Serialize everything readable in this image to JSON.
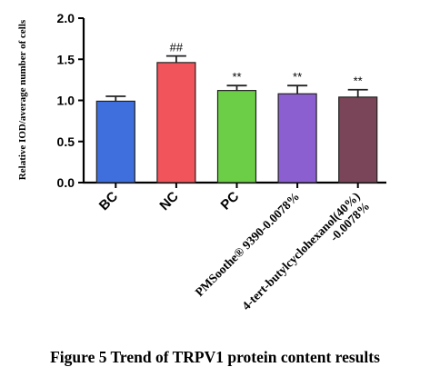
{
  "caption": "Figure 5 Trend of TRPV1 protein content results",
  "chart_data": {
    "type": "bar",
    "ylabel": "Relative IOD/average number of cells",
    "ylim": [
      0,
      2.0
    ],
    "yticks": [
      "0.0",
      "0.5",
      "1.0",
      "1.5",
      "2.0"
    ],
    "categories": [
      {
        "lines": [
          "BC"
        ]
      },
      {
        "lines": [
          "NC"
        ]
      },
      {
        "lines": [
          "PC"
        ]
      },
      {
        "lines": [
          "PMSoothe® 9390-0.0078%"
        ]
      },
      {
        "lines": [
          "4-tert-butylcyclohexanol(40%)",
          "-0.0078%"
        ]
      }
    ],
    "values": [
      0.99,
      1.46,
      1.12,
      1.08,
      1.04
    ],
    "errors": [
      0.06,
      0.08,
      0.06,
      0.1,
      0.09
    ],
    "significance": [
      "",
      "##",
      "**",
      "**",
      "**"
    ],
    "colors": [
      "#3f6fdc",
      "#f2545b",
      "#6cce46",
      "#8c5fd0",
      "#7a4558"
    ],
    "grid": false
  }
}
